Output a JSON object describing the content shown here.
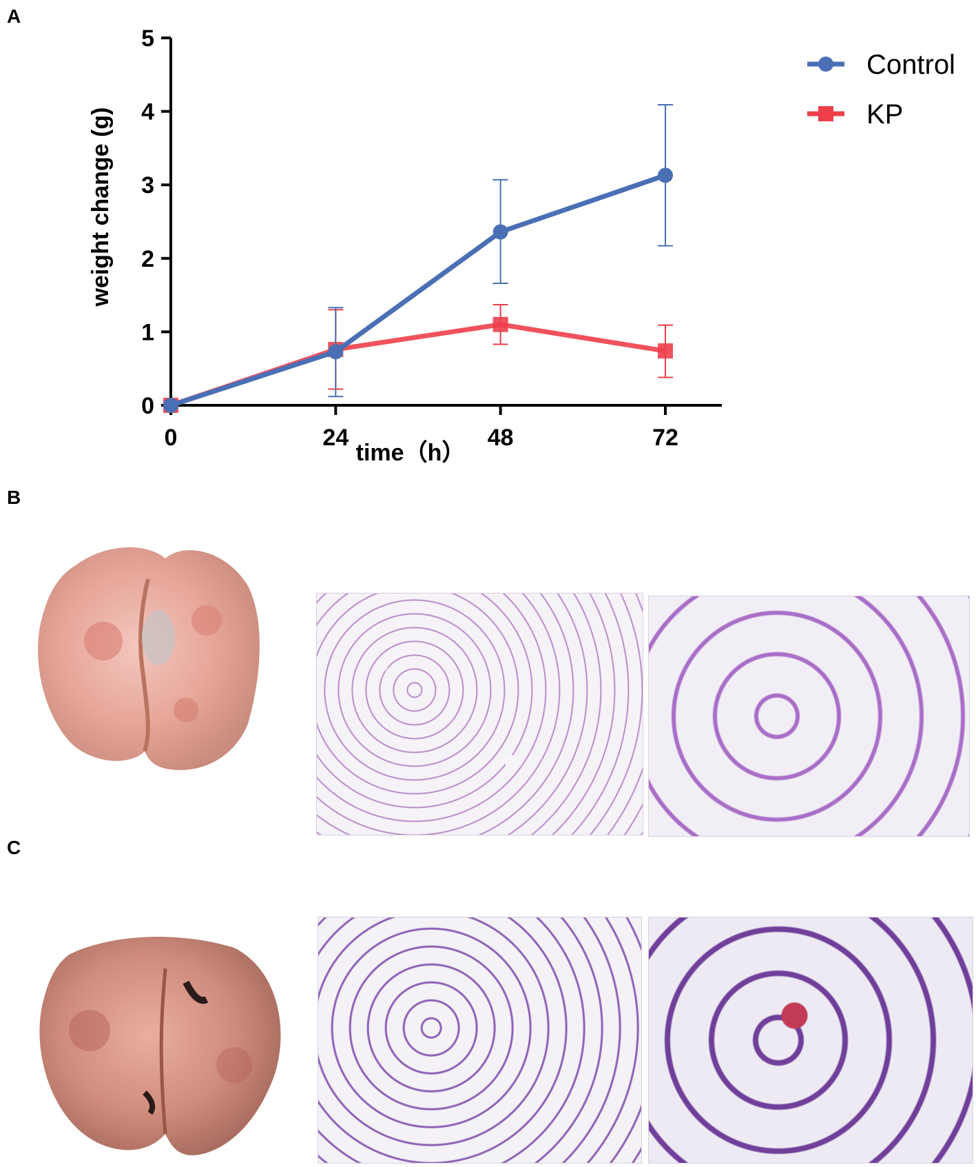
{
  "panels": {
    "a": "A",
    "b": "B",
    "c": "C"
  },
  "chart_data": {
    "type": "line",
    "xlabel": "time（h）",
    "ylabel": "weight change (g)",
    "x": [
      0,
      24,
      48,
      72
    ],
    "xticks": [
      "0",
      "24",
      "48",
      "72"
    ],
    "yticks": [
      "0",
      "1",
      "2",
      "3",
      "4",
      "5"
    ],
    "xlim": [
      0,
      80
    ],
    "ylim": [
      0,
      5
    ],
    "grid": false,
    "legend_position": "top-right",
    "series": [
      {
        "name": "Control",
        "color": "#4a6fb5",
        "marker": "circle",
        "values": [
          0,
          0.73,
          2.36,
          3.13
        ],
        "err_low": [
          0,
          0.12,
          1.66,
          2.17
        ],
        "err_high": [
          0,
          1.33,
          3.07,
          4.09
        ]
      },
      {
        "name": "KP",
        "color": "#ee3f4a",
        "marker": "square",
        "values": [
          0,
          0.76,
          1.1,
          0.74
        ],
        "err_low": [
          0,
          0.22,
          0.83,
          0.38
        ],
        "err_high": [
          0,
          1.3,
          1.37,
          1.09
        ]
      }
    ]
  }
}
